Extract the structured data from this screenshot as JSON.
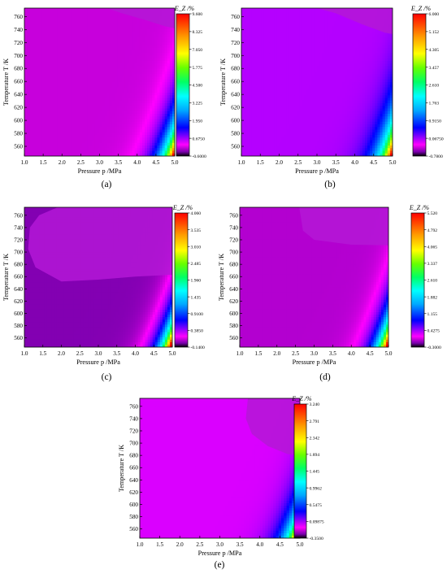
{
  "chart_data": [
    {
      "type": "heatmap",
      "panel_label": "(a)",
      "xlabel": "Pressure p /MPa",
      "ylabel": "Temperature T /K",
      "colorbar_title": "E_Z /%",
      "x_ticks": [
        "1.0",
        "1.5",
        "2.0",
        "2.5",
        "3.0",
        "3.5",
        "4.0",
        "4.5",
        "5.0"
      ],
      "y_ticks": [
        "560",
        "580",
        "600",
        "620",
        "640",
        "660",
        "680",
        "700",
        "720",
        "740",
        "760"
      ],
      "xlim": [
        1.0,
        5.0
      ],
      "ylim": [
        545,
        773
      ],
      "colorbar_ticks": [
        "9.600",
        "8.325",
        "7.050",
        "5.775",
        "4.500",
        "3.225",
        "1.950",
        "0.6750",
        "-0.6000"
      ],
      "zlim": [
        -0.6,
        9.6
      ],
      "surface_params": {
        "A": 11.2,
        "cp": 3.4,
        "ct": 18,
        "ce": 6.5,
        "m": 0.75,
        "D": 1.3
      },
      "dark_region": [
        [
          3.2,
          773
        ],
        [
          3.6,
          765
        ],
        [
          4.2,
          755
        ],
        [
          4.75,
          745
        ],
        [
          5.0,
          742
        ],
        [
          5.0,
          773
        ]
      ]
    },
    {
      "type": "heatmap",
      "panel_label": "(b)",
      "xlabel": "Pressure p /MPa",
      "ylabel": "Temperature T /K",
      "colorbar_title": "E_Z /%",
      "x_ticks": [
        "1.0",
        "1.5",
        "2.0",
        "2.5",
        "3.0",
        "3.5",
        "4.0",
        "4.5",
        "5.0"
      ],
      "y_ticks": [
        "560",
        "580",
        "600",
        "620",
        "640",
        "660",
        "680",
        "700",
        "720",
        "740",
        "760"
      ],
      "xlim": [
        1.0,
        5.0
      ],
      "ylim": [
        545,
        773
      ],
      "colorbar_ticks": [
        "6.000",
        "5.152",
        "4.305",
        "3.457",
        "2.610",
        "1.763",
        "0.9150",
        "0.06750",
        "-0.7800"
      ],
      "zlim": [
        -0.78,
        6.0
      ],
      "surface_params": {
        "A": 7.2,
        "cp": 3.5,
        "ct": 19,
        "ce": 6.5,
        "m": 0.72,
        "D": 1.4
      },
      "dark_region": [
        [
          3.0,
          773
        ],
        [
          3.5,
          765
        ],
        [
          4.2,
          748
        ],
        [
          4.8,
          735
        ],
        [
          5.0,
          733
        ],
        [
          5.0,
          773
        ]
      ]
    },
    {
      "type": "heatmap",
      "panel_label": "(c)",
      "xlabel": "Pressure p /MPa",
      "ylabel": "Temperature T /K",
      "colorbar_title": "E_Z /%",
      "x_ticks": [
        "1.0",
        "1.5",
        "2.0",
        "2.5",
        "3.0",
        "3.5",
        "4.0",
        "4.5",
        "5.0"
      ],
      "y_ticks": [
        "560",
        "580",
        "600",
        "620",
        "640",
        "660",
        "680",
        "700",
        "720",
        "740",
        "760"
      ],
      "xlim": [
        1.0,
        5.0
      ],
      "ylim": [
        545,
        773
      ],
      "colorbar_ticks": [
        "4.060",
        "3.535",
        "3.010",
        "2.485",
        "1.960",
        "1.435",
        "0.9100",
        "0.3850",
        "-0.1400"
      ],
      "zlim": [
        -0.14,
        4.06
      ],
      "surface_params": {
        "A": 5.2,
        "cp": 3.8,
        "ct": 15,
        "ce": 6.0,
        "m": 0.85,
        "D": 0.9
      },
      "dark_region": [
        [
          1.9,
          773
        ],
        [
          1.4,
          760
        ],
        [
          1.15,
          740
        ],
        [
          1.1,
          705
        ],
        [
          1.3,
          675
        ],
        [
          2.0,
          652
        ],
        [
          3.0,
          655
        ],
        [
          4.0,
          660
        ],
        [
          5.0,
          663
        ],
        [
          5.0,
          773
        ]
      ]
    },
    {
      "type": "heatmap",
      "panel_label": "(d)",
      "xlabel": "Pressure p /MPa",
      "ylabel": "Temperature T /K",
      "colorbar_title": "E_Z /%",
      "x_ticks": [
        "1.0",
        "1.5",
        "2.0",
        "2.5",
        "3.0",
        "3.5",
        "4.0",
        "4.5",
        "5.0"
      ],
      "y_ticks": [
        "560",
        "580",
        "600",
        "620",
        "640",
        "660",
        "680",
        "700",
        "720",
        "740",
        "760"
      ],
      "xlim": [
        1.0,
        5.0
      ],
      "ylim": [
        545,
        773
      ],
      "colorbar_ticks": [
        "5.520",
        "4.792",
        "4.065",
        "3.337",
        "2.610",
        "1.882",
        "1.155",
        "0.4275",
        "-0.3000"
      ],
      "zlim": [
        -0.3,
        5.52
      ],
      "surface_params": {
        "A": 7.0,
        "cp": 3.9,
        "ct": 16,
        "ce": 6.0,
        "m": 0.8,
        "D": 1.0
      },
      "dark_region": [
        [
          2.6,
          773
        ],
        [
          2.7,
          735
        ],
        [
          3.0,
          720
        ],
        [
          4.0,
          712
        ],
        [
          5.0,
          711
        ],
        [
          5.0,
          773
        ]
      ]
    },
    {
      "type": "heatmap",
      "panel_label": "(e)",
      "xlabel": "Pressure p /MPa",
      "ylabel": "Temperature T /K",
      "colorbar_title": "E_Z /%",
      "x_ticks": [
        "1.0",
        "1.5",
        "2.0",
        "2.5",
        "3.0",
        "3.5",
        "4.0",
        "4.5",
        "5.0"
      ],
      "y_ticks": [
        "560",
        "580",
        "600",
        "620",
        "640",
        "660",
        "680",
        "700",
        "720",
        "740",
        "760"
      ],
      "xlim": [
        1.0,
        5.0
      ],
      "ylim": [
        545,
        773
      ],
      "colorbar_ticks": [
        "3.240",
        "2.791",
        "2.342",
        "1.894",
        "1.445",
        "0.9962",
        "0.5475",
        "0.09875",
        "-0.3500"
      ],
      "zlim": [
        -0.35,
        3.24
      ],
      "surface_params": {
        "A": 4.3,
        "cp": 3.9,
        "ct": 16,
        "ce": 6.0,
        "m": 0.8,
        "D": 1.0
      },
      "dark_region": [
        [
          3.7,
          773
        ],
        [
          3.65,
          740
        ],
        [
          3.8,
          715
        ],
        [
          4.2,
          695
        ],
        [
          4.7,
          682
        ],
        [
          5.0,
          680
        ],
        [
          5.0,
          773
        ]
      ]
    }
  ]
}
